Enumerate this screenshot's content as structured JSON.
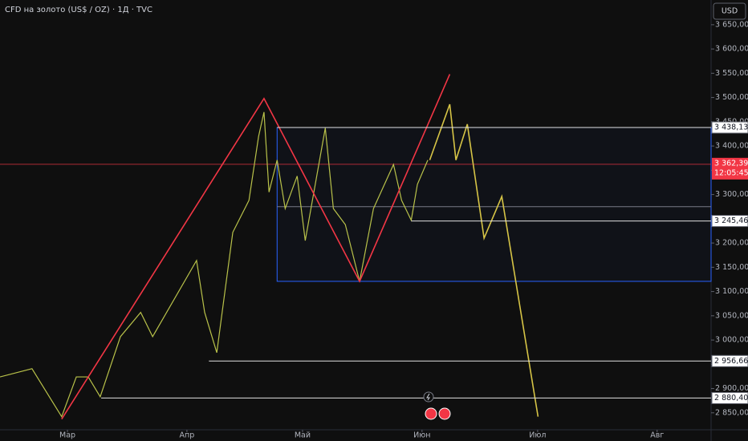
{
  "chart_data": {
    "type": "line",
    "title": "CFD на золото (US$ / OZ) · 1Д · TVC",
    "currency": "USD",
    "xlim": [
      42.5,
      227
    ],
    "ylim": [
      2815,
      3701
    ],
    "xticks": [
      {
        "value": 60,
        "label": "Мар"
      },
      {
        "value": 91,
        "label": "Апр"
      },
      {
        "value": 121,
        "label": "Май"
      },
      {
        "value": 152,
        "label": "Июн"
      },
      {
        "value": 182,
        "label": "Июл"
      },
      {
        "value": 213,
        "label": "Авг"
      }
    ],
    "yticks": [
      {
        "value": 3650,
        "label": "3 650,000"
      },
      {
        "value": 3600,
        "label": "3 600,000"
      },
      {
        "value": 3550,
        "label": "3 550,000"
      },
      {
        "value": 3500,
        "label": "3 500,000"
      },
      {
        "value": 3450,
        "label": "3 450,000"
      },
      {
        "value": 3400,
        "label": "3 400,000"
      },
      {
        "value": 3350,
        "label": "3 350,000"
      },
      {
        "value": 3300,
        "label": "3 300,000"
      },
      {
        "value": 3250,
        "label": "3 250,000"
      },
      {
        "value": 3200,
        "label": "3 200,000"
      },
      {
        "value": 3150,
        "label": "3 150,000"
      },
      {
        "value": 3100,
        "label": "3 100,000"
      },
      {
        "value": 3050,
        "label": "3 050,000"
      },
      {
        "value": 3000,
        "label": "3 000,000"
      },
      {
        "value": 2950,
        "label": "2 950,000"
      },
      {
        "value": 2900,
        "label": "2 900,000"
      },
      {
        "value": 2850,
        "label": "2 850,000"
      }
    ],
    "series": [
      {
        "name": "price",
        "color": "#b9c24a",
        "x": [
          42.5,
          50.8,
          58.5,
          62.3,
          65.4,
          68.5,
          73.75,
          79,
          82.1,
          93.5,
          95.6,
          98.75,
          102.9,
          107.1,
          109.6,
          111,
          112.3,
          114.4,
          116.5,
          119.6,
          121.7,
          126.9,
          129,
          132.1,
          135.8,
          139.4,
          144.6,
          146.7,
          149.2,
          150.8,
          153.5
        ],
        "values": [
          2924,
          2941,
          2842,
          2924,
          2924,
          2883,
          3007,
          3057,
          3007,
          3164,
          3057,
          2974,
          3222,
          3288,
          3420,
          3470,
          3305,
          3371,
          3271,
          3338,
          3205,
          3437,
          3271,
          3238,
          3121,
          3271,
          3362,
          3288,
          3247,
          3321,
          3371
        ]
      },
      {
        "name": "zigzag",
        "color": "#f23645",
        "x": [
          58.5,
          111,
          135.8,
          159.2
        ],
        "values": [
          2837,
          3498,
          3121,
          3548
        ]
      },
      {
        "name": "projection",
        "color": "#d6c446",
        "x": [
          154,
          159.2,
          160.8,
          163.75,
          168.1,
          172.7,
          182.1
        ],
        "values": [
          3371,
          3486,
          3371,
          3445,
          3210,
          3296,
          2842
        ]
      }
    ],
    "levels": [
      {
        "value": 3438.133,
        "label": "3 438,133",
        "x_start": 114.4
      },
      {
        "value": 3245.46,
        "label": "3 245,460",
        "x_start": 149.2
      },
      {
        "value": 2956.66,
        "label": "2 956,660",
        "x_start": 96.7
      },
      {
        "value": 2880.4,
        "label": "2 880,400",
        "x_start": 68.75
      }
    ],
    "midline": {
      "value": 3275,
      "x_start": 114.4
    },
    "box": {
      "top": 3438.133,
      "bottom": 3121,
      "x_start": 114.4,
      "color": "#2962ff"
    },
    "current_price": {
      "value": 3362.39,
      "label": "3 362,390",
      "countdown": "12:05:45",
      "color": "#f23645"
    }
  }
}
